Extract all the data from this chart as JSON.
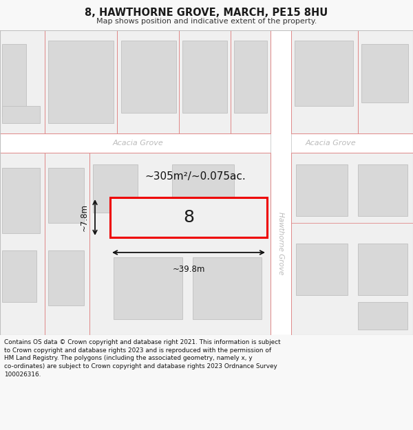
{
  "title": "8, HAWTHORNE GROVE, MARCH, PE15 8HU",
  "subtitle": "Map shows position and indicative extent of the property.",
  "footer": "Contains OS data © Crown copyright and database right 2021. This information is subject\nto Crown copyright and database rights 2023 and is reproduced with the permission of\nHM Land Registry. The polygons (including the associated geometry, namely x, y\nco-ordinates) are subject to Crown copyright and database rights 2023 Ordnance Survey\n100026316.",
  "bg": "#f8f8f8",
  "map_bg": "#f8f8f8",
  "road_bg": "#ffffff",
  "plot_ec": "#e08888",
  "building_fc": "#d8d8d8",
  "building_ec": "#c0c0c0",
  "highlight_ec": "#ee0000",
  "road_label": "#bbbbbb",
  "area_text": "~305m²/~0.075ac.",
  "width_text": "~39.8m",
  "height_text": "~7.8m",
  "plot_number": "8",
  "street_v": "Hawthorne Grove",
  "street_h1": "Acacia Grove",
  "street_h2": "Acacia Grove"
}
